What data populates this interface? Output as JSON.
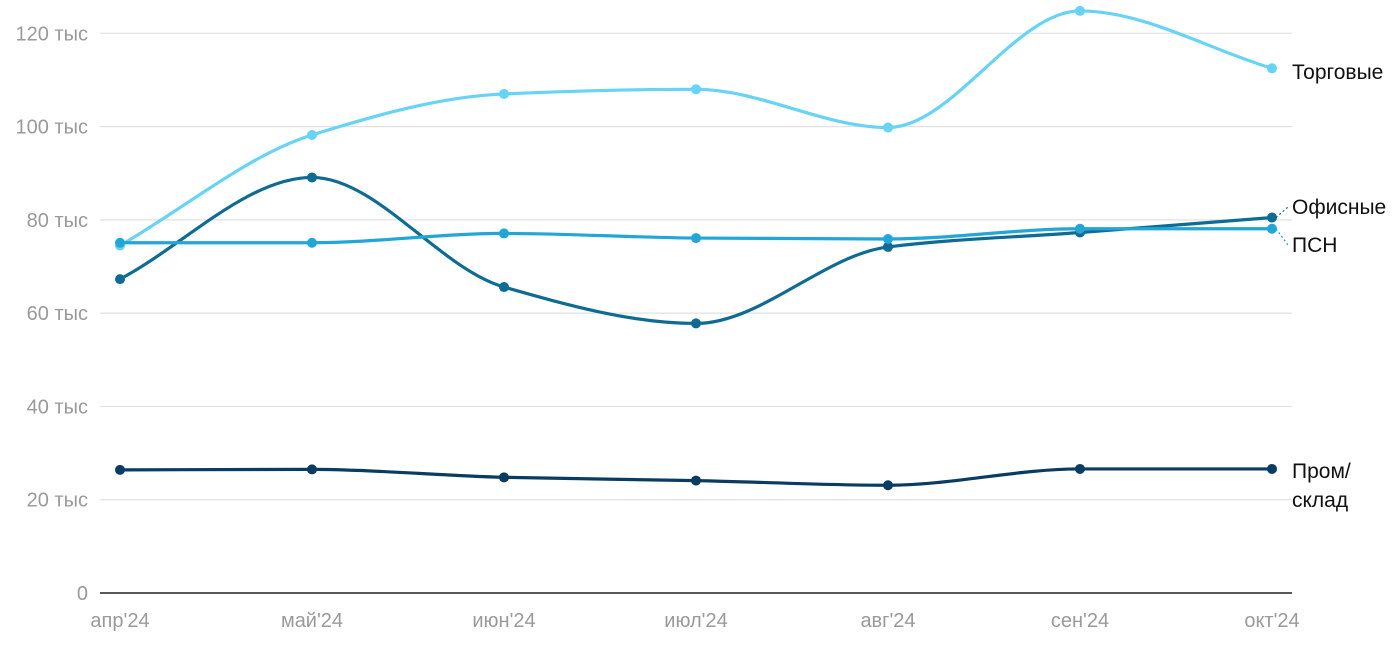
{
  "chart_data": {
    "type": "line",
    "categories": [
      "апр'24",
      "май'24",
      "июн'24",
      "июл'24",
      "авг'24",
      "сен'24",
      "окт'24"
    ],
    "y_ticks": [
      0,
      20000,
      40000,
      60000,
      80000,
      100000,
      120000
    ],
    "y_tick_labels": [
      "0",
      "20 тыс",
      "40 тыс",
      "60 тыс",
      "80 тыс",
      "100 тыс",
      "120 тыс"
    ],
    "ylim": [
      0,
      125000
    ],
    "grid": true,
    "legend": "direct labels at right end of lines",
    "series": [
      {
        "name": "Торговые",
        "color": "#66d3f7",
        "values": [
          74500,
          98200,
          107000,
          108000,
          99800,
          124800,
          112500
        ]
      },
      {
        "name": "Офисные",
        "color": "#0d6b94",
        "values": [
          67300,
          89100,
          65600,
          57800,
          74200,
          77300,
          80500
        ]
      },
      {
        "name": "ПСН",
        "color": "#22a6d8",
        "values": [
          75100,
          75100,
          77100,
          76100,
          75900,
          78100,
          78100
        ]
      },
      {
        "name": "Пром/ склад",
        "label_lines": [
          "Пром/",
          "склад"
        ],
        "color": "#0a3c63",
        "values": [
          26400,
          26500,
          24800,
          24100,
          23100,
          26600,
          26600
        ]
      }
    ]
  }
}
